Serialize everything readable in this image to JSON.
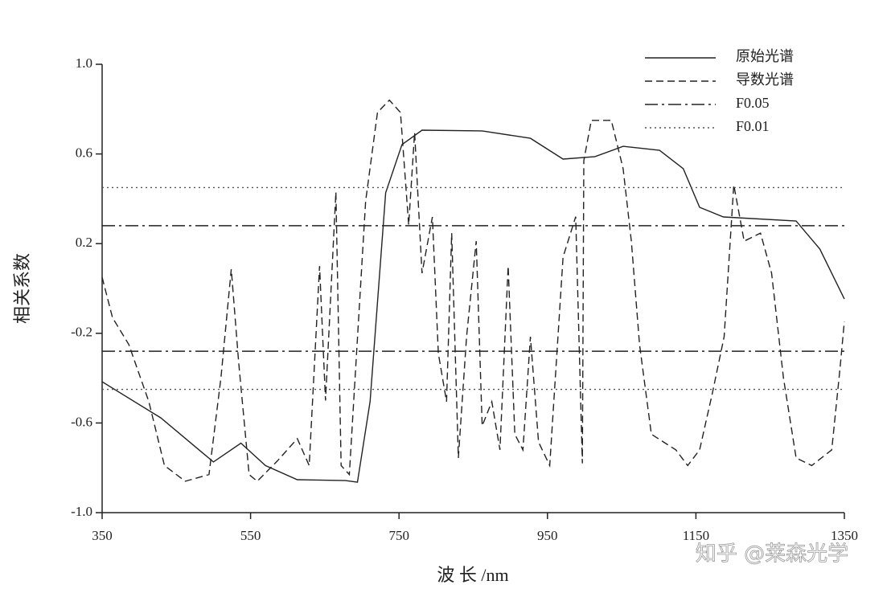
{
  "chart_data": {
    "type": "line",
    "xlabel": "波 长 /nm",
    "ylabel": "相关系数",
    "xlim": [
      350,
      1350
    ],
    "xticks": [
      350,
      550,
      750,
      950,
      1150,
      1350
    ],
    "ylim": [
      -1.0,
      1.0
    ],
    "yticks": [
      {
        "value": -1.0,
        "label": "-1.0"
      },
      -0.6,
      -0.2,
      0.2,
      0.6,
      {
        "value": 1.0,
        "label": "1.0"
      }
    ],
    "annotation": "知乎 @莱森光学",
    "series": [
      {
        "name": "原始光谱",
        "color": "#222222",
        "dash": "solid",
        "x": [
          350,
          429,
          500,
          537,
          570,
          613,
          678,
          694,
          711,
          732,
          754,
          781,
          862,
          927,
          971,
          1014,
          1052,
          1101,
          1133,
          1155,
          1187,
          1285,
          1317,
          1350
        ],
        "values": [
          -0.416,
          -0.577,
          -0.774,
          -0.69,
          -0.79,
          -0.853,
          -0.857,
          -0.864,
          -0.505,
          0.427,
          0.642,
          0.706,
          0.703,
          0.67,
          0.577,
          0.588,
          0.634,
          0.616,
          0.534,
          0.362,
          0.319,
          0.301,
          0.176,
          -0.047
        ]
      },
      {
        "name": "导数光谱",
        "color": "#222222",
        "dash": "dashed",
        "x": [
          350,
          364,
          386,
          413,
          434,
          462,
          494,
          510,
          524,
          534,
          548,
          559,
          586,
          613,
          629,
          643,
          651,
          665,
          672,
          683,
          705,
          721,
          737,
          752,
          763,
          771,
          781,
          795,
          803,
          814,
          821,
          830,
          841,
          854,
          862,
          875,
          886,
          897,
          906,
          917,
          927,
          938,
          953,
          971,
          988,
          997,
          999,
          1009,
          1036,
          1052,
          1063,
          1074,
          1090,
          1123,
          1139,
          1155,
          1172,
          1188,
          1201,
          1215,
          1237,
          1252,
          1268,
          1285,
          1306,
          1333,
          1344,
          1350
        ],
        "values": [
          0.05,
          -0.13,
          -0.25,
          -0.505,
          -0.79,
          -0.86,
          -0.83,
          -0.4,
          0.086,
          -0.33,
          -0.83,
          -0.86,
          -0.77,
          -0.67,
          -0.79,
          0.1,
          -0.5,
          0.43,
          -0.79,
          -0.83,
          0.39,
          0.785,
          0.84,
          0.785,
          0.283,
          0.696,
          0.068,
          0.319,
          -0.29,
          -0.505,
          0.247,
          -0.756,
          -0.215,
          0.211,
          -0.613,
          -0.505,
          -0.72,
          0.1,
          -0.65,
          -0.72,
          -0.215,
          -0.685,
          -0.79,
          0.14,
          0.32,
          -0.78,
          0.57,
          0.75,
          0.75,
          0.534,
          0.211,
          -0.25,
          -0.65,
          -0.72,
          -0.79,
          -0.72,
          -0.47,
          -0.215,
          0.462,
          0.211,
          0.247,
          0.068,
          -0.4,
          -0.756,
          -0.79,
          -0.72,
          -0.36,
          -0.147
        ]
      },
      {
        "name": "F0.05",
        "color": "#222222",
        "dash": "dashdot",
        "type": "hline",
        "values": [
          0.28,
          -0.28
        ]
      },
      {
        "name": "F0.01",
        "color": "#555555",
        "dash": "dotted",
        "type": "hline",
        "values": [
          0.45,
          -0.45
        ]
      }
    ]
  }
}
